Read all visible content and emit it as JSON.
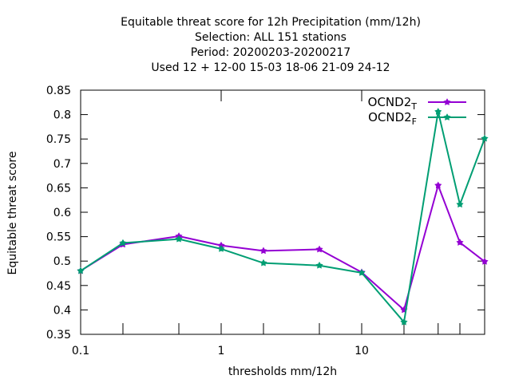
{
  "chart_data": {
    "type": "line",
    "title_lines": [
      "Equitable threat score  for 12h Precipitation (mm/12h)",
      "Selection: ALL    151 stations",
      "Period: 20200203-20200217",
      "Used  12 + 12-00 15-03 18-06 21-09 24-12"
    ],
    "xlabel": "thresholds mm/12h",
    "ylabel": "Equitable threat score",
    "x_scale": "log",
    "xlim": [
      0.1,
      75
    ],
    "ylim": [
      0.35,
      0.85
    ],
    "x_ticks": [
      {
        "v": 0.1,
        "label": "0.1"
      },
      {
        "v": 1,
        "label": "1"
      },
      {
        "v": 10,
        "label": "10"
      }
    ],
    "x_minor_ticks": [
      0.2,
      0.5,
      2,
      5,
      20,
      35,
      50
    ],
    "y_ticks": [
      {
        "v": 0.35,
        "label": "0.35"
      },
      {
        "v": 0.4,
        "label": "0.4"
      },
      {
        "v": 0.45,
        "label": "0.45"
      },
      {
        "v": 0.5,
        "label": "0.5"
      },
      {
        "v": 0.55,
        "label": "0.55"
      },
      {
        "v": 0.6,
        "label": "0.6"
      },
      {
        "v": 0.65,
        "label": "0.65"
      },
      {
        "v": 0.7,
        "label": "0.7"
      },
      {
        "v": 0.75,
        "label": "0.75"
      },
      {
        "v": 0.8,
        "label": "0.8"
      },
      {
        "v": 0.85,
        "label": "0.85"
      }
    ],
    "grid": false,
    "legend_position": "top-right",
    "x": [
      0.1,
      0.2,
      0.5,
      1,
      2,
      5,
      10,
      20,
      35,
      50,
      75
    ],
    "series": [
      {
        "name": "OCND2",
        "sub": "T",
        "color": "#9400d3",
        "values": [
          0.48,
          0.534,
          0.551,
          0.532,
          0.521,
          0.524,
          0.477,
          0.4,
          0.655,
          0.538,
          0.499
        ]
      },
      {
        "name": "OCND2",
        "sub": "F",
        "color": "#009e73",
        "values": [
          0.48,
          0.537,
          0.545,
          0.525,
          0.496,
          0.491,
          0.476,
          0.375,
          0.806,
          0.616,
          0.751
        ]
      }
    ]
  }
}
